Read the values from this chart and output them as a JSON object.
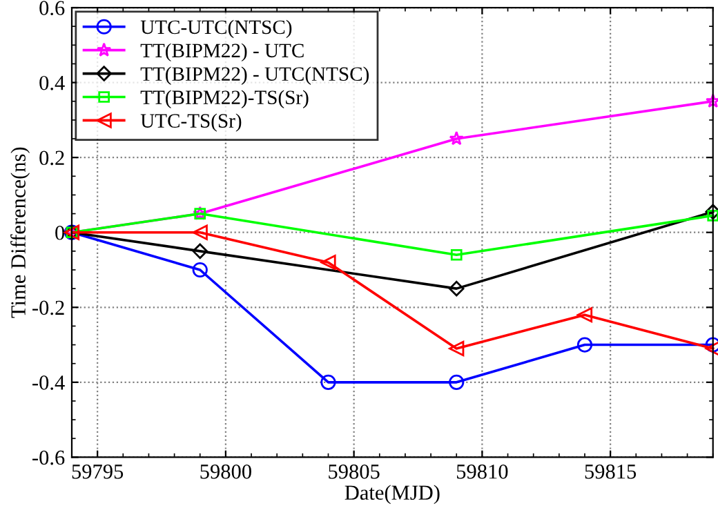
{
  "chart_data": {
    "type": "line",
    "xlabel": "Date(MJD)",
    "ylabel": "Time Difference(ns)",
    "xlim": [
      59794,
      59819
    ],
    "xticks": [
      59795,
      59800,
      59805,
      59810,
      59815
    ],
    "ylim": [
      -0.6,
      0.6
    ],
    "yticks": [
      -0.6,
      -0.4,
      -0.2,
      0,
      0.2,
      0.4,
      0.6
    ],
    "grid": true,
    "legend": "top left",
    "series": [
      {
        "name": "UTC-UTC(NTSC)",
        "color": "#0000ff",
        "marker": "circle",
        "x": [
          59794,
          59799,
          59804,
          59809,
          59814,
          59819
        ],
        "values": [
          0,
          -0.1,
          -0.4,
          -0.4,
          -0.3,
          -0.3
        ]
      },
      {
        "name": "TT(BIPM22) - UTC",
        "color": "#ff00ff",
        "marker": "star",
        "x": [
          59794,
          59799,
          59809,
          59819
        ],
        "values": [
          0,
          0.05,
          0.25,
          0.35
        ]
      },
      {
        "name": "TT(BIPM22) - UTC(NTSC)",
        "color": "#000000",
        "marker": "diamond",
        "x": [
          59794,
          59799,
          59809,
          59819
        ],
        "values": [
          0,
          -0.05,
          -0.15,
          0.055
        ]
      },
      {
        "name": "TT(BIPM22)-TS(Sr)",
        "color": "#00ff00",
        "marker": "square",
        "x": [
          59794,
          59799,
          59809,
          59819
        ],
        "values": [
          0,
          0.05,
          -0.06,
          0.045
        ]
      },
      {
        "name": "UTC-TS(Sr)",
        "color": "#ff0000",
        "marker": "triangle",
        "x": [
          59794,
          59799,
          59804,
          59809,
          59814,
          59819
        ],
        "values": [
          0,
          0,
          -0.08,
          -0.31,
          -0.22,
          -0.31
        ]
      }
    ]
  }
}
